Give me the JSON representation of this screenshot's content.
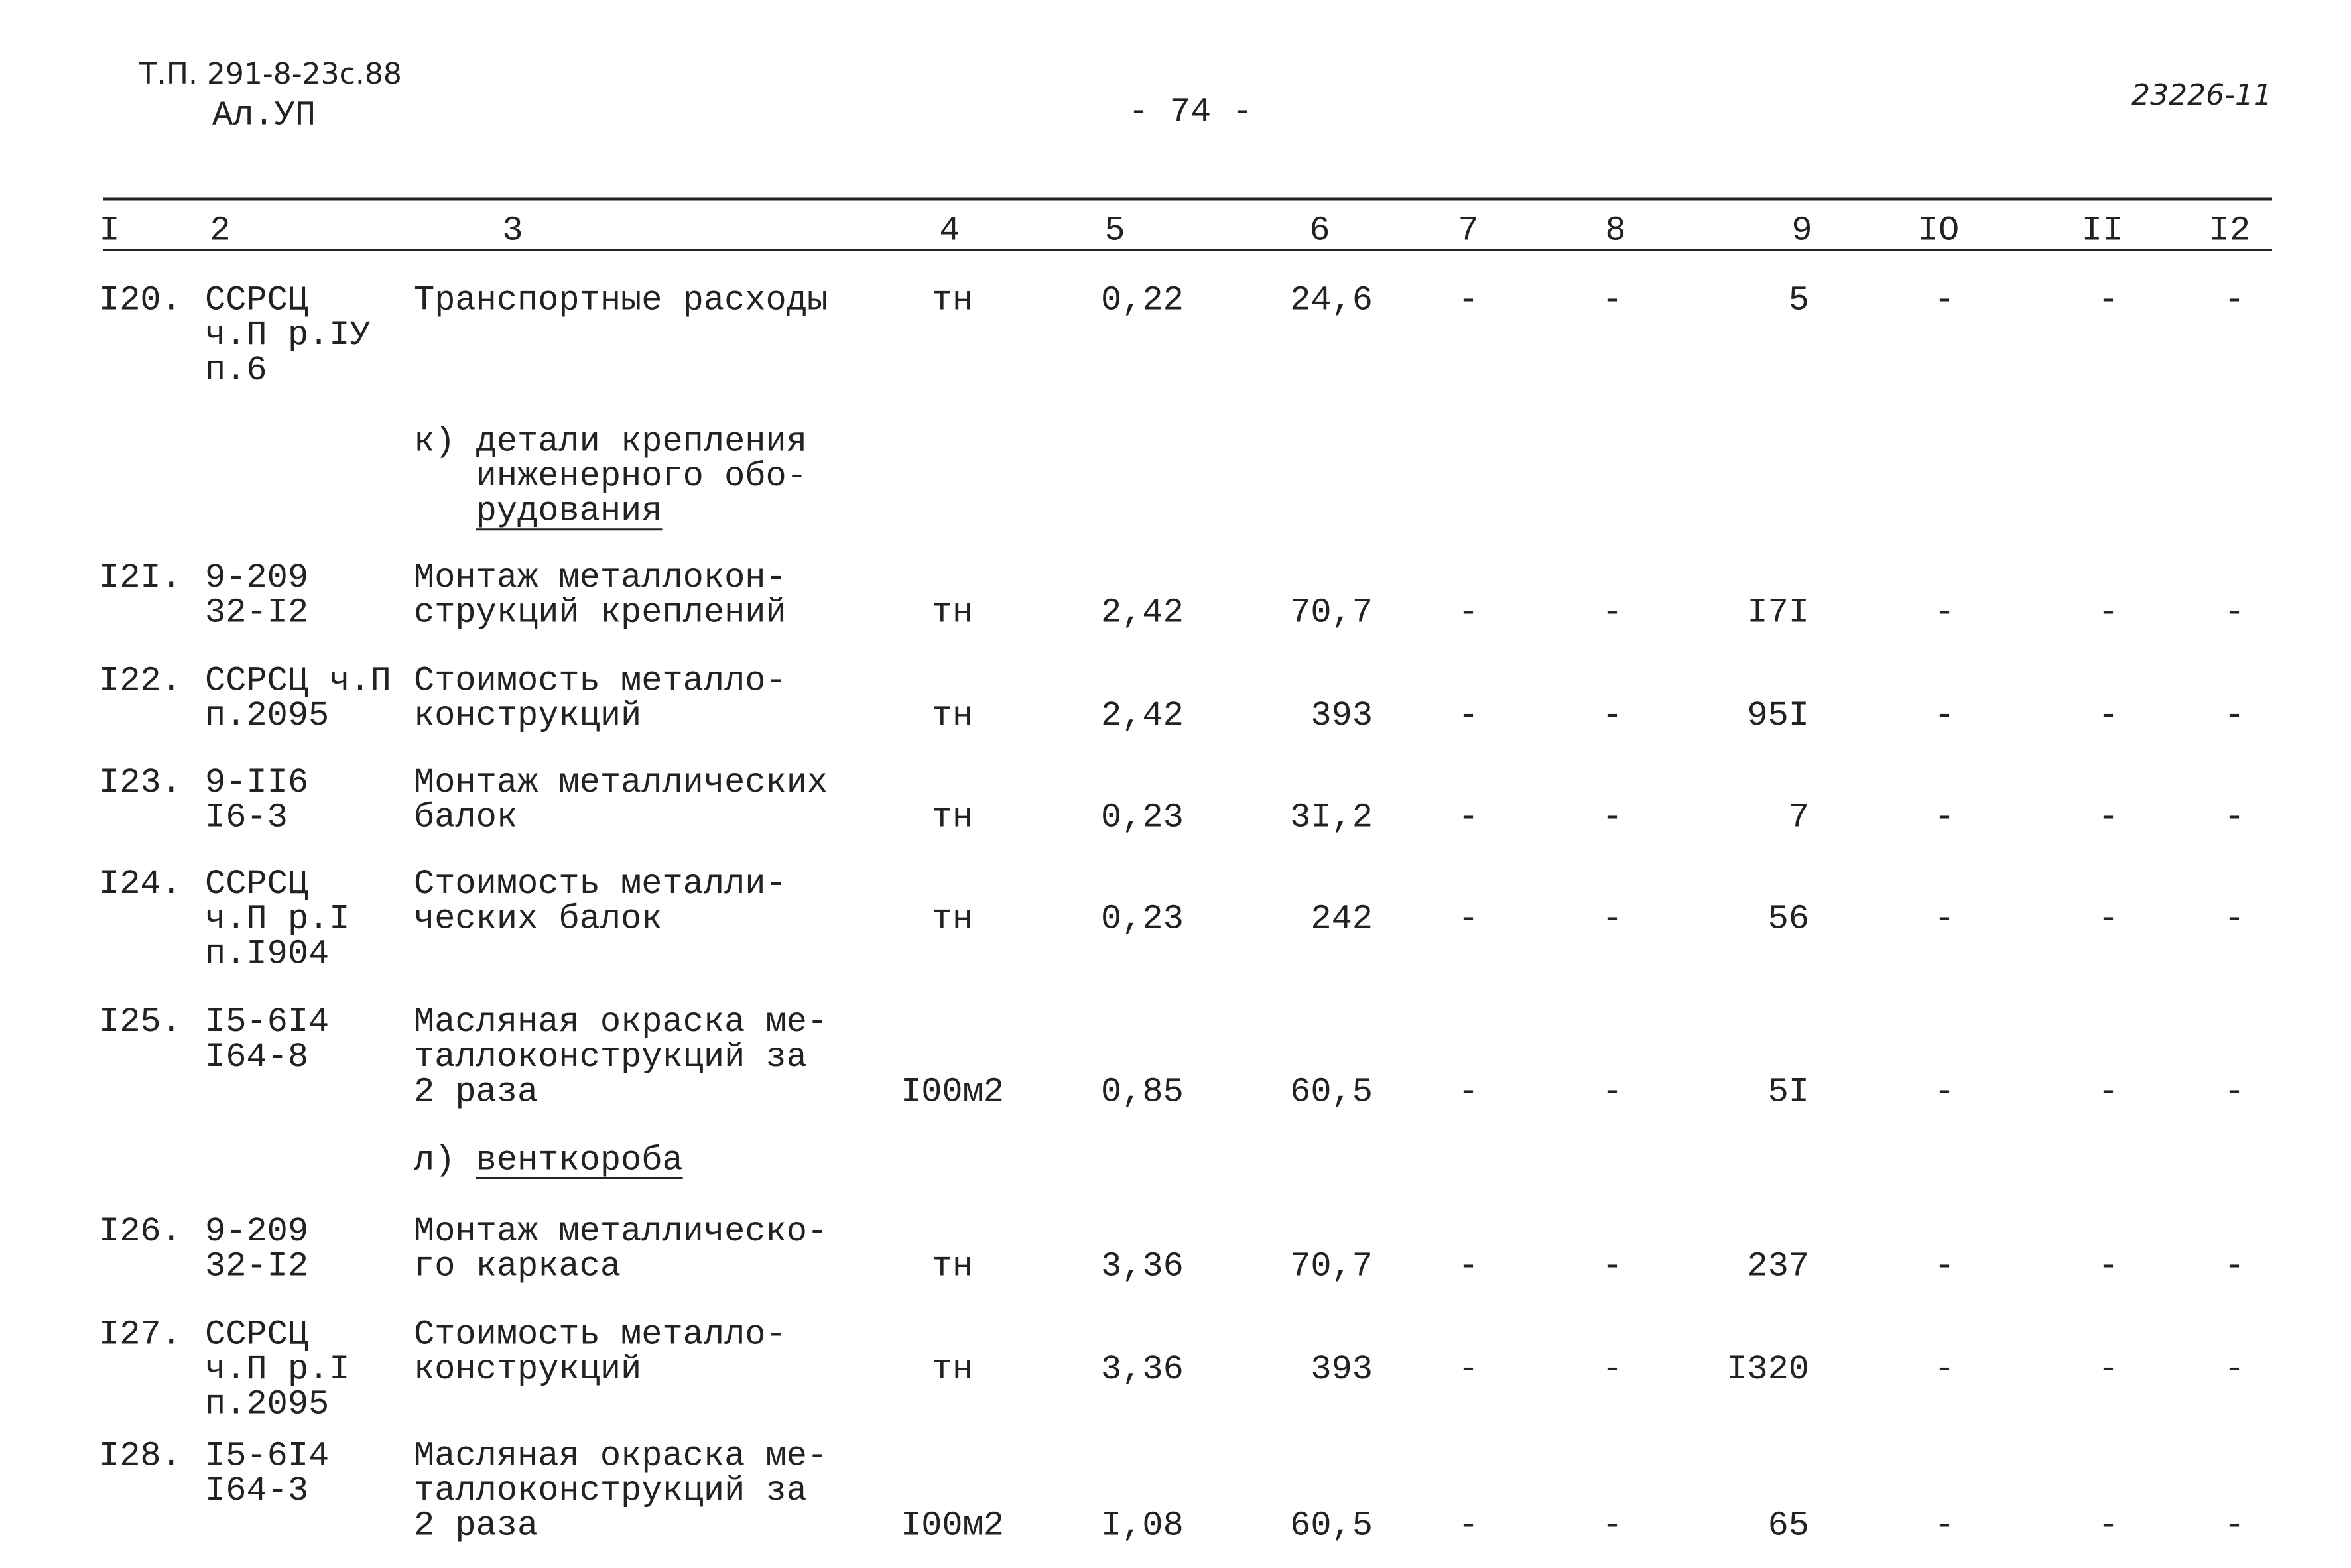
{
  "header": {
    "code": "Т.П. 291-8-23с.88",
    "album": "Ал.УП",
    "page": "- 74 -",
    "stamp": "23226-11"
  },
  "table": {
    "columns": [
      "I",
      "2",
      "3",
      "4",
      "5",
      "6",
      "7",
      "8",
      "9",
      "IO",
      "II",
      "I2"
    ],
    "rows": [
      {
        "num": "I20.",
        "code": [
          "ССРСЦ",
          "ч.П р.IУ",
          "п.6"
        ],
        "name": [
          "Транспортные расходы"
        ],
        "unit": "тн",
        "values": [
          "0,22",
          "24,6",
          "-",
          "-",
          "5",
          "-",
          "-",
          "-"
        ]
      },
      {
        "section": [
          "к) детали крепления",
          "   инженерного обо-",
          "   рудования"
        ]
      },
      {
        "num": "I2I.",
        "code": [
          "9-209",
          "32-I2"
        ],
        "name": [
          "Монтаж металлокон-",
          "струкций креплений"
        ],
        "unit": "тн",
        "values": [
          "2,42",
          "70,7",
          "-",
          "-",
          "I7I",
          "-",
          "-",
          "-"
        ]
      },
      {
        "num": "I22.",
        "code": [
          "ССРСЦ ч.П",
          "п.2095"
        ],
        "name": [
          "Стоимость металло-",
          "конструкций"
        ],
        "unit": "тн",
        "values": [
          "2,42",
          "393",
          "-",
          "-",
          "95I",
          "-",
          "-",
          "-"
        ]
      },
      {
        "num": "I23.",
        "code": [
          "9-II6",
          "I6-3"
        ],
        "name": [
          "Монтаж металлических",
          "балок"
        ],
        "unit": "тн",
        "values": [
          "0,23",
          "3I,2",
          "-",
          "-",
          "7",
          "-",
          "-",
          "-"
        ]
      },
      {
        "num": "I24.",
        "code": [
          "ССРСЦ",
          "ч.П р.I",
          "п.I904"
        ],
        "name": [
          "Стоимость металли-",
          "ческих балок"
        ],
        "unit": "тн",
        "values": [
          "0,23",
          "242",
          "-",
          "-",
          "56",
          "-",
          "-",
          "-"
        ]
      },
      {
        "num": "I25.",
        "code": [
          "I5-6I4",
          "I64-8"
        ],
        "name": [
          "Масляная окраска ме-",
          "таллоконструкций за",
          "2 раза"
        ],
        "unit": "I00м2",
        "values": [
          "0,85",
          "60,5",
          "-",
          "-",
          "5I",
          "-",
          "-",
          "-"
        ]
      },
      {
        "section": [
          "л) венткороба"
        ]
      },
      {
        "num": "I26.",
        "code": [
          "9-209",
          "32-I2"
        ],
        "name": [
          "Монтаж металлическо-",
          "го каркаса"
        ],
        "unit": "тн",
        "values": [
          "3,36",
          "70,7",
          "-",
          "-",
          "237",
          "-",
          "-",
          "-"
        ]
      },
      {
        "num": "I27.",
        "code": [
          "ССРСЦ",
          "ч.П р.I",
          "п.2095"
        ],
        "name": [
          "Стоимость металло-",
          "конструкций"
        ],
        "unit": "тн",
        "values": [
          "3,36",
          "393",
          "-",
          "-",
          "I320",
          "-",
          "-",
          "-"
        ]
      },
      {
        "num": "I28.",
        "code": [
          "I5-6I4",
          "I64-3"
        ],
        "name": [
          "Масляная окраска ме-",
          "таллоконструкций за",
          "2 раза"
        ],
        "unit": "I00м2",
        "values": [
          "I,08",
          "60,5",
          "-",
          "-",
          "65",
          "-",
          "-",
          "-"
        ]
      }
    ]
  }
}
